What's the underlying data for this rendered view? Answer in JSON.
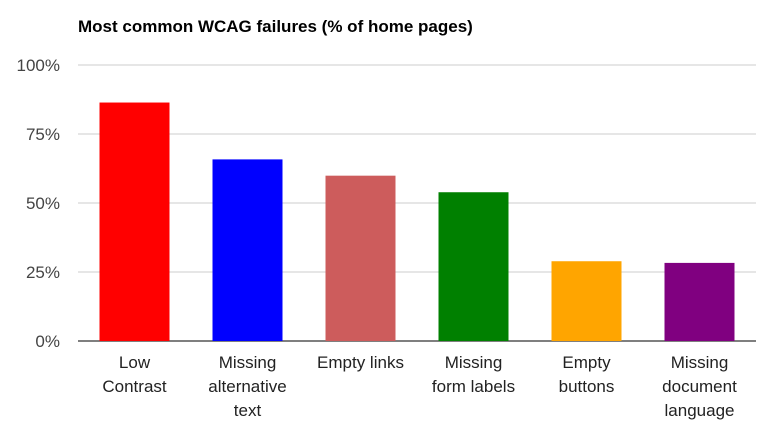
{
  "chart_data": {
    "type": "bar",
    "title": "Most common WCAG failures (% of home pages)",
    "xlabel": "",
    "ylabel": "",
    "ylim": [
      0,
      100
    ],
    "yticks": [
      0,
      25,
      50,
      75,
      100
    ],
    "ytick_labels": [
      "0%",
      "25%",
      "50%",
      "75%",
      "100%"
    ],
    "grid": true,
    "legend": "none",
    "categories": [
      "Low Contrast",
      "Missing alternative text",
      "Empty links",
      "Missing form labels",
      "Empty buttons",
      "Missing document language"
    ],
    "category_label_lines": [
      [
        "Low",
        "Contrast"
      ],
      [
        "Missing",
        "alternative",
        "text"
      ],
      [
        "Empty links"
      ],
      [
        "Missing",
        "form labels"
      ],
      [
        "Empty",
        "buttons"
      ],
      [
        "Missing",
        "document",
        "language"
      ]
    ],
    "values": [
      86.4,
      65.8,
      59.9,
      53.9,
      28.9,
      28.3
    ],
    "colors": [
      "#ff0000",
      "#0000ff",
      "#cd5c5c",
      "#008000",
      "#ffa500",
      "#800080"
    ]
  }
}
